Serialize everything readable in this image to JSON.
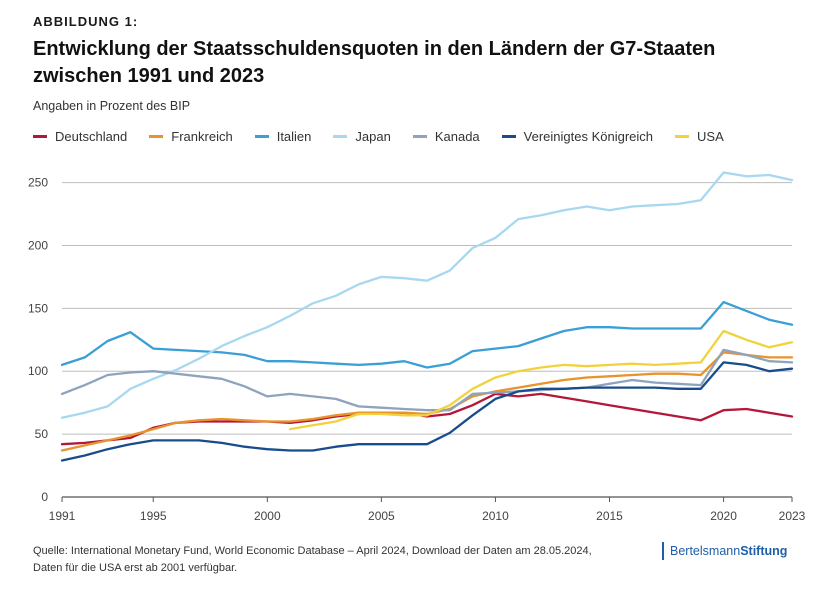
{
  "header": {
    "kicker": "ABBILDUNG 1:",
    "title": "Entwicklung der Staatsschuldensquoten in den Ländern der G7-Staaten zwischen 1991 und 2023",
    "subtitle": "Angaben in Prozent des BIP"
  },
  "footer": {
    "source": "Quelle: International Monetary Fund, World Economic Database – April 2024, Download der Daten am 28.05.2024, Daten für die USA erst ab 2001 verfügbar.",
    "brand_regular": "Bertelsmann",
    "brand_bold": "Stiftung"
  },
  "chart_data": {
    "type": "line",
    "title": "Entwicklung der Staatsschuldensquoten in den Ländern der G7-Staaten zwischen 1991 und 2023",
    "ylabel": "Angaben in Prozent des BIP",
    "xlabel": "",
    "xlim": [
      1991,
      2023
    ],
    "ylim": [
      0,
      260
    ],
    "x_ticks": [
      1991,
      1995,
      2000,
      2005,
      2010,
      2015,
      2020,
      2023
    ],
    "y_ticks": [
      0,
      50,
      100,
      150,
      200,
      250
    ],
    "grid": true,
    "legend_position": "top",
    "series": [
      {
        "name": "Deutschland",
        "color": "#b5173a",
        "x": [
          1991,
          1992,
          1993,
          1994,
          1995,
          1996,
          1997,
          1998,
          1999,
          2000,
          2001,
          2002,
          2003,
          2004,
          2005,
          2006,
          2007,
          2008,
          2009,
          2010,
          2011,
          2012,
          2013,
          2014,
          2015,
          2016,
          2017,
          2018,
          2019,
          2020,
          2021,
          2022,
          2023
        ],
        "values": [
          42,
          43,
          45,
          47,
          55,
          59,
          60,
          60,
          60,
          60,
          59,
          61,
          64,
          66,
          67,
          67,
          64,
          66,
          73,
          82,
          80,
          82,
          79,
          76,
          73,
          70,
          67,
          64,
          61,
          69,
          70,
          67,
          64
        ]
      },
      {
        "name": "Frankreich",
        "color": "#e8932b",
        "x": [
          1991,
          1992,
          1993,
          1994,
          1995,
          1996,
          1997,
          1998,
          1999,
          2000,
          2001,
          2002,
          2003,
          2004,
          2005,
          2006,
          2007,
          2008,
          2009,
          2010,
          2011,
          2012,
          2013,
          2014,
          2015,
          2016,
          2017,
          2018,
          2019,
          2020,
          2021,
          2022,
          2023
        ],
        "values": [
          37,
          41,
          45,
          49,
          54,
          59,
          61,
          62,
          61,
          60,
          60,
          62,
          65,
          67,
          67,
          67,
          66,
          70,
          80,
          84,
          87,
          90,
          93,
          95,
          96,
          97,
          98,
          98,
          97,
          115,
          113,
          111,
          111
        ]
      },
      {
        "name": "Italien",
        "color": "#3a9fd6",
        "x": [
          1991,
          1992,
          1993,
          1994,
          1995,
          1996,
          1997,
          1998,
          1999,
          2000,
          2001,
          2002,
          2003,
          2004,
          2005,
          2006,
          2007,
          2008,
          2009,
          2010,
          2011,
          2012,
          2013,
          2014,
          2015,
          2016,
          2017,
          2018,
          2019,
          2020,
          2021,
          2022,
          2023
        ],
        "values": [
          105,
          111,
          124,
          131,
          118,
          117,
          116,
          115,
          113,
          108,
          108,
          107,
          106,
          105,
          106,
          108,
          103,
          106,
          116,
          118,
          120,
          126,
          132,
          135,
          135,
          134,
          134,
          134,
          134,
          155,
          148,
          141,
          137
        ]
      },
      {
        "name": "Japan",
        "color": "#a8d8f0",
        "x": [
          1991,
          1992,
          1993,
          1994,
          1995,
          1996,
          1997,
          1998,
          1999,
          2000,
          2001,
          2002,
          2003,
          2004,
          2005,
          2006,
          2007,
          2008,
          2009,
          2010,
          2011,
          2012,
          2013,
          2014,
          2015,
          2016,
          2017,
          2018,
          2019,
          2020,
          2021,
          2022,
          2023
        ],
        "values": [
          63,
          67,
          72,
          86,
          94,
          101,
          110,
          120,
          128,
          135,
          144,
          154,
          160,
          169,
          175,
          174,
          172,
          180,
          198,
          206,
          221,
          224,
          228,
          231,
          228,
          231,
          232,
          233,
          236,
          258,
          255,
          256,
          252
        ]
      },
      {
        "name": "Kanada",
        "color": "#8ea3bd",
        "x": [
          1991,
          1992,
          1993,
          1994,
          1995,
          1996,
          1997,
          1998,
          1999,
          2000,
          2001,
          2002,
          2003,
          2004,
          2005,
          2006,
          2007,
          2008,
          2009,
          2010,
          2011,
          2012,
          2013,
          2014,
          2015,
          2016,
          2017,
          2018,
          2019,
          2020,
          2021,
          2022,
          2023
        ],
        "values": [
          82,
          89,
          97,
          99,
          100,
          98,
          96,
          94,
          88,
          80,
          82,
          80,
          78,
          72,
          71,
          70,
          69,
          69,
          82,
          83,
          84,
          85,
          86,
          87,
          90,
          93,
          91,
          90,
          89,
          117,
          113,
          108,
          107
        ]
      },
      {
        "name": "Vereinigtes Königreich",
        "color": "#184c8c",
        "x": [
          1991,
          1992,
          1993,
          1994,
          1995,
          1996,
          1997,
          1998,
          1999,
          2000,
          2001,
          2002,
          2003,
          2004,
          2005,
          2006,
          2007,
          2008,
          2009,
          2010,
          2011,
          2012,
          2013,
          2014,
          2015,
          2016,
          2017,
          2018,
          2019,
          2020,
          2021,
          2022,
          2023
        ],
        "values": [
          29,
          33,
          38,
          42,
          45,
          45,
          45,
          43,
          40,
          38,
          37,
          37,
          40,
          42,
          42,
          42,
          42,
          51,
          65,
          78,
          84,
          86,
          86,
          87,
          87,
          87,
          87,
          86,
          86,
          107,
          105,
          100,
          102
        ]
      },
      {
        "name": "USA",
        "color": "#f2d23c",
        "x": [
          2001,
          2002,
          2003,
          2004,
          2005,
          2006,
          2007,
          2008,
          2009,
          2010,
          2011,
          2012,
          2013,
          2014,
          2015,
          2016,
          2017,
          2018,
          2019,
          2020,
          2021,
          2022,
          2023
        ],
        "values": [
          54,
          57,
          60,
          66,
          66,
          65,
          65,
          73,
          86,
          95,
          100,
          103,
          105,
          104,
          105,
          106,
          105,
          106,
          107,
          132,
          125,
          119,
          123
        ]
      }
    ]
  }
}
